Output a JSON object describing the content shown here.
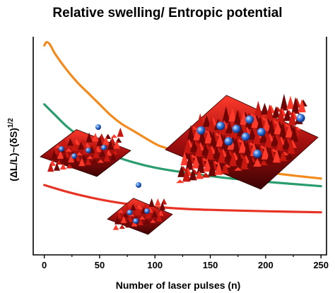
{
  "chart_data": {
    "type": "line",
    "title": "Relative swelling/ Entropic potential",
    "xlabel": "Number of laser pulses (n)",
    "ylabel": "(ΔL/L)~(δS)",
    "ylabel_superscript": "1/2",
    "xlim": [
      -10,
      255
    ],
    "ylim": [
      0,
      1
    ],
    "x_ticks": [
      0,
      50,
      100,
      150,
      200,
      250
    ],
    "x_tick_labels": [
      "0",
      "50",
      "100",
      "150",
      "200",
      "250"
    ],
    "grid": false,
    "series": [
      {
        "color": "#f28a1e",
        "x": [
          0,
          2,
          5,
          10,
          20,
          30,
          40,
          50,
          60,
          70,
          80,
          100,
          110,
          150,
          200,
          250
        ],
        "y": [
          0.96,
          0.975,
          0.965,
          0.92,
          0.85,
          0.79,
          0.74,
          0.69,
          0.64,
          0.6,
          0.57,
          0.51,
          0.49,
          0.43,
          0.38,
          0.35
        ],
        "gaps": [
          [
            110,
            112
          ]
        ]
      },
      {
        "color": "#2a9d6e",
        "x": [
          0,
          10,
          20,
          30,
          40,
          60,
          80,
          100,
          130,
          160,
          200,
          250
        ],
        "y": [
          0.69,
          0.64,
          0.59,
          0.55,
          0.515,
          0.46,
          0.425,
          0.4,
          0.375,
          0.355,
          0.335,
          0.315
        ]
      },
      {
        "color": "#e63323",
        "x": [
          0,
          20,
          40,
          60,
          80,
          100,
          130,
          160,
          200,
          250
        ],
        "y": [
          0.32,
          0.29,
          0.265,
          0.245,
          0.23,
          0.22,
          0.21,
          0.205,
          0.2,
          0.195
        ]
      }
    ],
    "insets": [
      {
        "kind": "3d-surface-red",
        "dots": 4
      },
      {
        "kind": "3d-surface-red",
        "dots": 3
      },
      {
        "kind": "3d-surface-red",
        "dots": 9
      }
    ]
  },
  "colors": {
    "surface_dark": "#3b0303",
    "surface_mid": "#a30f0f",
    "surface_light": "#ff3a2a",
    "dot": "#2f6bd6"
  }
}
